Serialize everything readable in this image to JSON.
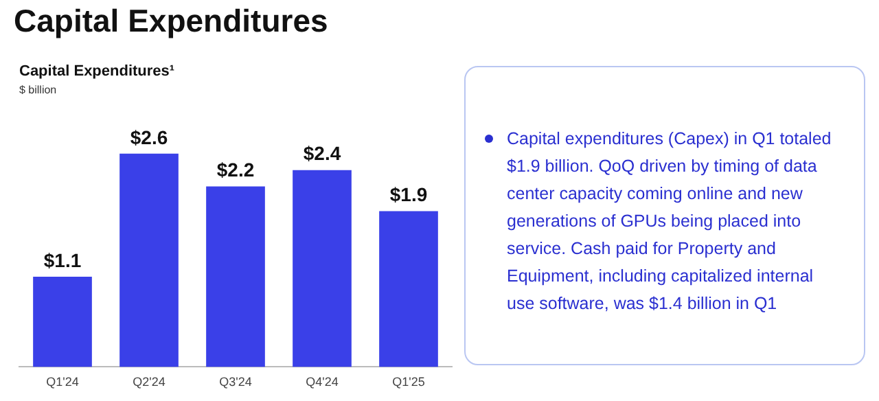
{
  "chart_data": [
    {
      "type": "bar",
      "title": "Capital Expenditures",
      "subtitle": "Capital Expenditures¹",
      "ylabel": "$ billion",
      "categories": [
        "Q1'24",
        "Q2'24",
        "Q3'24",
        "Q4'24",
        "Q1'25"
      ],
      "values": [
        1.1,
        2.6,
        2.2,
        2.4,
        1.9
      ],
      "value_labels": [
        "$1.1",
        "$2.6",
        "$2.2",
        "$2.4",
        "$1.9"
      ],
      "color": "#3a40e8",
      "tick_labels": "x",
      "grid": false,
      "legend": false
    },
    {
      "type": "other",
      "annotations": [
        "Capital expenditures (Capex) in Q1 totaled $1.9 billion. QoQ driven by timing of data center capacity coming online and new generations of GPUs being placed into service. Cash paid for Property and Equipment, including capitalized internal use software, was $1.4 billion in Q1"
      ]
    }
  ]
}
